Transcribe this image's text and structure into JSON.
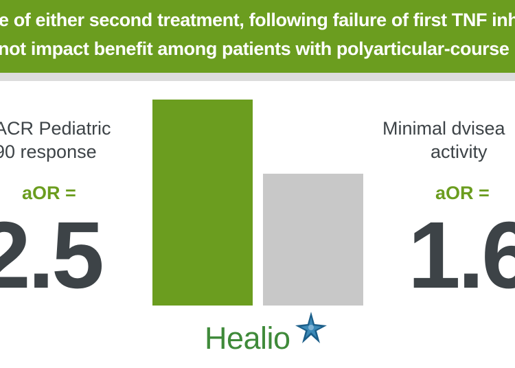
{
  "banner": {
    "line1": "e of either second treatment, following failure of first TNF inh",
    "line2": "not impact benefit among patients with polyarticular-course"
  },
  "left_stat": {
    "title_line1": "ACR Pediatric",
    "title_line2": "90 response",
    "aor_label": "aOR =",
    "value": "2.5"
  },
  "right_stat": {
    "title_line1": "Minimal dvisea",
    "title_line2": "activity",
    "aor_label": "aOR =",
    "value": "1.6"
  },
  "bars": [
    {
      "value": 2.5,
      "color": "#6b9d1f"
    },
    {
      "value": 1.6,
      "color": "#c8c8c8"
    }
  ],
  "logo": {
    "text": "Healio",
    "icon": "star-icon"
  },
  "colors": {
    "brand_green": "#6b9d1f",
    "banner_text": "#ffffff",
    "stat_text": "#3d4347",
    "bar_gray": "#c8c8c8",
    "rule_gray": "#dcdcdc",
    "logo_green": "#3f8a3a",
    "logo_star_blue": "#1c5f8a"
  }
}
